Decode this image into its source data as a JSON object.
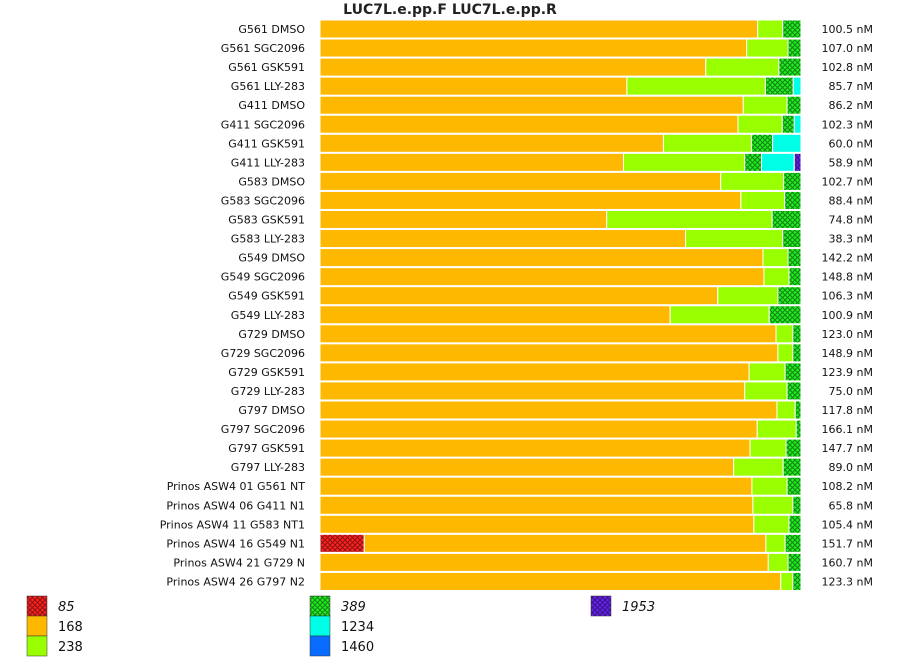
{
  "chart_data": {
    "type": "bar",
    "orientation": "horizontal",
    "stacked": "percent",
    "title": "LUC7L.e.pp.F  LUC7L.e.pp.R",
    "categories": [
      "G561 DMSO",
      "G561 SGC2096",
      "G561 GSK591",
      "G561 LLY-283",
      "G411 DMSO",
      "G411 SGC2096",
      "G411 GSK591",
      "G411 LLY-283",
      "G583 DMSO",
      "G583 SGC2096",
      "G583 GSK591",
      "G583 LLY-283",
      "G549 DMSO",
      "G549 SGC2096",
      "G549 GSK591",
      "G549 LLY-283",
      "G729 DMSO",
      "G729 SGC2096",
      "G729 GSK591",
      "G729 LLY-283",
      "G797 DMSO",
      "G797 SGC2096",
      "G797 GSK591",
      "G797 LLY-283",
      "Prinos ASW4 01 G561 NT",
      "Prinos ASW4 06 G411 N1",
      "Prinos ASW4 11 G583 NT1",
      "Prinos ASW4 16 G549 N1",
      "Prinos ASW4 21 G729 N",
      "Prinos ASW4 26 G797 N2"
    ],
    "concentrations": [
      "100.5 nM",
      "107.0 nM",
      "102.8 nM",
      "85.7 nM",
      "86.2 nM",
      "102.3 nM",
      "60.0 nM",
      "58.9 nM",
      "102.7 nM",
      "88.4 nM",
      "74.8 nM",
      "38.3 nM",
      "142.2 nM",
      "148.8 nM",
      "106.3 nM",
      "100.9 nM",
      "123.0 nM",
      "148.9 nM",
      "123.9 nM",
      "75.0 nM",
      "117.8 nM",
      "166.1 nM",
      "147.7 nM",
      "89.0 nM",
      "108.2 nM",
      "65.8 nM",
      "105.4 nM",
      "151.7 nM",
      "160.7 nM",
      "123.3 nM"
    ],
    "series": [
      {
        "name": "85",
        "color": "#ff2020",
        "pattern": "crosshatch",
        "italic": true,
        "values": [
          0,
          0,
          0,
          0,
          0,
          0,
          0,
          0,
          0,
          0,
          0,
          0,
          0,
          0,
          0,
          0,
          0,
          0,
          0,
          0,
          0,
          0,
          0,
          0,
          0,
          0,
          0,
          9.2,
          0,
          0
        ]
      },
      {
        "name": "168",
        "color": "#ffb800",
        "pattern": "solid",
        "italic": false,
        "values": [
          91.0,
          88.7,
          80.2,
          63.8,
          88.0,
          86.9,
          71.4,
          63.1,
          83.3,
          87.5,
          59.6,
          76.0,
          92.1,
          92.3,
          82.7,
          72.8,
          94.8,
          95.2,
          89.2,
          88.3,
          95.0,
          90.9,
          89.4,
          86.0,
          89.8,
          90.0,
          90.2,
          83.5,
          93.2,
          95.8
        ]
      },
      {
        "name": "238",
        "color": "#99ff00",
        "pattern": "solid",
        "italic": false,
        "values": [
          5.2,
          8.6,
          15.2,
          28.8,
          9.1,
          9.2,
          18.3,
          25.2,
          13.1,
          9.1,
          34.4,
          20.2,
          5.2,
          5.2,
          12.5,
          20.6,
          3.5,
          3.1,
          7.5,
          8.8,
          3.8,
          8.1,
          7.5,
          10.3,
          7.3,
          8.3,
          7.3,
          4.0,
          4.1,
          2.5
        ]
      },
      {
        "name": "389",
        "color": "#22ee22",
        "pattern": "crosshatch",
        "italic": true,
        "values": [
          3.8,
          2.7,
          4.6,
          5.8,
          2.9,
          2.5,
          4.4,
          3.5,
          3.6,
          3.4,
          6.0,
          3.8,
          2.7,
          2.5,
          4.8,
          6.6,
          1.7,
          1.7,
          3.3,
          2.9,
          1.2,
          1.0,
          3.1,
          3.7,
          2.9,
          1.7,
          2.5,
          3.3,
          2.7,
          1.7
        ]
      },
      {
        "name": "1234",
        "color": "#00ffe6",
        "pattern": "solid",
        "italic": false,
        "values": [
          0,
          0,
          0,
          1.6,
          0,
          1.4,
          5.9,
          6.8,
          0,
          0,
          0,
          0,
          0,
          0,
          0,
          0,
          0,
          0,
          0,
          0,
          0,
          0,
          0,
          0,
          0,
          0,
          0,
          0,
          0,
          0
        ]
      },
      {
        "name": "1460",
        "color": "#0a6cff",
        "pattern": "solid",
        "italic": false,
        "values": [
          0,
          0,
          0,
          0,
          0,
          0,
          0,
          0,
          0,
          0,
          0,
          0,
          0,
          0,
          0,
          0,
          0,
          0,
          0,
          0,
          0,
          0,
          0,
          0,
          0,
          0,
          0,
          0,
          0,
          0
        ]
      },
      {
        "name": "1953",
        "color": "#6622ee",
        "pattern": "crosshatch",
        "italic": true,
        "values": [
          0,
          0,
          0,
          0,
          0,
          0,
          0,
          1.4,
          0,
          0,
          0,
          0,
          0,
          0,
          0,
          0,
          0,
          0,
          0,
          0,
          0,
          0,
          0,
          0,
          0,
          0,
          0,
          0,
          0,
          0
        ]
      }
    ],
    "legend": {
      "placement": "bottom",
      "columns": [
        [
          "85",
          "168",
          "238"
        ],
        [
          "389",
          "1234",
          "1460"
        ],
        [
          "1953"
        ]
      ]
    },
    "grid": false
  }
}
